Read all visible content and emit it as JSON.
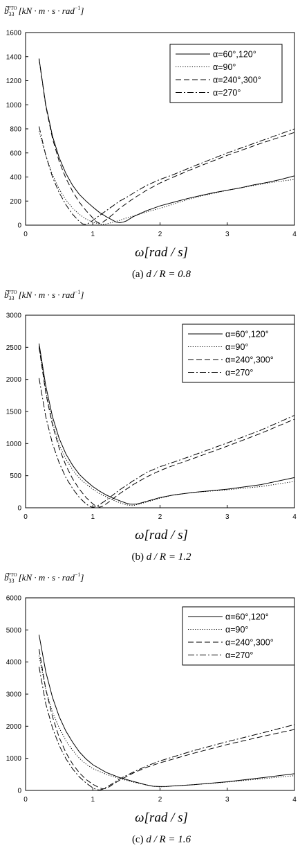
{
  "chart_data": [
    {
      "type": "line",
      "ylabel": "b̃₃₃^PTO [kN·m·s·rad⁻¹]",
      "xlabel": "ω[rad / s]",
      "caption": "(a)  d / R = 0.8",
      "xlim": [
        0,
        4
      ],
      "ylim": [
        0,
        1600
      ],
      "xticks": [
        0,
        1,
        2,
        3,
        4
      ],
      "yticks": [
        0,
        200,
        400,
        600,
        800,
        1000,
        1200,
        1400,
        1600
      ],
      "grid": false,
      "legend_position": "top-right",
      "series": [
        {
          "name": "α=60°,120°",
          "dash": "solid",
          "x": [
            0.2,
            0.3,
            0.4,
            0.5,
            0.6,
            0.7,
            0.8,
            0.9,
            1.0,
            1.1,
            1.2,
            1.3,
            1.35,
            1.4,
            1.45,
            1.5,
            1.6,
            1.7,
            1.8,
            1.9,
            2.0,
            2.2,
            2.4,
            2.6,
            2.8,
            3.0,
            3.2,
            3.4,
            3.6,
            3.8,
            4.0
          ],
          "y": [
            1385,
            1000,
            740,
            560,
            430,
            330,
            255,
            200,
            150,
            105,
            70,
            40,
            25,
            20,
            25,
            35,
            70,
            95,
            120,
            140,
            160,
            190,
            220,
            245,
            270,
            290,
            310,
            335,
            355,
            380,
            410
          ]
        },
        {
          "name": "α=90°",
          "dash": "dotted",
          "x": [
            0.2,
            0.3,
            0.4,
            0.5,
            0.6,
            0.7,
            0.8,
            0.9,
            1.0,
            1.1,
            1.15,
            1.2,
            1.3,
            1.4,
            1.5,
            1.6,
            1.8,
            2.0,
            2.2,
            2.4,
            2.6,
            2.8,
            3.0,
            3.2,
            3.4,
            3.6,
            3.8,
            4.0
          ],
          "y": [
            780,
            580,
            420,
            300,
            210,
            140,
            90,
            50,
            25,
            10,
            5,
            10,
            25,
            40,
            60,
            75,
            110,
            140,
            175,
            210,
            240,
            265,
            290,
            310,
            330,
            350,
            365,
            380
          ]
        },
        {
          "name": "α=240°,300°",
          "dash": "dashed",
          "x": [
            0.2,
            0.3,
            0.4,
            0.5,
            0.6,
            0.7,
            0.8,
            0.9,
            1.0,
            1.05,
            1.1,
            1.15,
            1.2,
            1.3,
            1.4,
            1.5,
            1.6,
            1.8,
            2.0,
            2.2,
            2.5,
            3.0,
            3.5,
            4.0
          ],
          "y": [
            1380,
            990,
            720,
            530,
            390,
            280,
            190,
            120,
            60,
            30,
            15,
            25,
            45,
            90,
            140,
            180,
            220,
            290,
            350,
            400,
            470,
            580,
            680,
            770
          ]
        },
        {
          "name": "α=270°",
          "dash": "dash-dot",
          "x": [
            0.2,
            0.3,
            0.4,
            0.5,
            0.6,
            0.7,
            0.8,
            0.85,
            0.9,
            0.95,
            1.0,
            1.05,
            1.1,
            1.2,
            1.3,
            1.4,
            1.5,
            1.6,
            1.8,
            2.0,
            2.2,
            2.5,
            3.0,
            3.5,
            4.0
          ],
          "y": [
            820,
            580,
            400,
            270,
            170,
            90,
            30,
            10,
            5,
            20,
            40,
            60,
            80,
            120,
            160,
            200,
            230,
            265,
            330,
            380,
            420,
            490,
            600,
            700,
            800
          ]
        }
      ]
    },
    {
      "type": "line",
      "ylabel": "b̃₃₃^PTO [kN·m·s·rad⁻¹]",
      "xlabel": "ω[rad / s]",
      "caption": "(b)  d / R = 1.2",
      "xlim": [
        0,
        4
      ],
      "ylim": [
        0,
        3000
      ],
      "xticks": [
        0,
        1,
        2,
        3,
        4
      ],
      "yticks": [
        0,
        500,
        1000,
        1500,
        2000,
        2500,
        3000
      ],
      "grid": false,
      "legend_position": "top-right",
      "series": [
        {
          "name": "α=60°,120°",
          "dash": "solid",
          "x": [
            0.2,
            0.3,
            0.4,
            0.5,
            0.6,
            0.7,
            0.8,
            0.9,
            1.0,
            1.1,
            1.2,
            1.3,
            1.4,
            1.5,
            1.55,
            1.6,
            1.65,
            1.7,
            1.8,
            1.9,
            2.0,
            2.2,
            2.5,
            3.0,
            3.5,
            4.0
          ],
          "y": [
            2560,
            1900,
            1420,
            1080,
            840,
            660,
            520,
            420,
            330,
            260,
            200,
            150,
            110,
            70,
            58,
            55,
            58,
            70,
            100,
            130,
            160,
            200,
            240,
            290,
            360,
            470
          ]
        },
        {
          "name": "α=90°",
          "dash": "dotted",
          "x": [
            0.2,
            0.3,
            0.4,
            0.5,
            0.6,
            0.7,
            0.8,
            0.9,
            1.0,
            1.1,
            1.2,
            1.3,
            1.4,
            1.5,
            1.6,
            1.7,
            1.8,
            2.0,
            2.2,
            2.5,
            3.0,
            3.5,
            4.0
          ],
          "y": [
            2520,
            1820,
            1330,
            980,
            760,
            590,
            460,
            370,
            290,
            220,
            170,
            120,
            80,
            45,
            35,
            60,
            90,
            150,
            200,
            240,
            280,
            330,
            410
          ]
        },
        {
          "name": "α=240°,300°",
          "dash": "dashed",
          "x": [
            0.2,
            0.3,
            0.4,
            0.5,
            0.6,
            0.7,
            0.8,
            0.9,
            1.0,
            1.05,
            1.1,
            1.15,
            1.2,
            1.3,
            1.4,
            1.5,
            1.6,
            1.8,
            2.0,
            2.2,
            2.5,
            3.0,
            3.5,
            4.0
          ],
          "y": [
            2500,
            1790,
            1290,
            930,
            660,
            450,
            290,
            160,
            60,
            25,
            10,
            25,
            60,
            140,
            220,
            290,
            360,
            480,
            580,
            660,
            770,
            960,
            1160,
            1380
          ]
        },
        {
          "name": "α=270°",
          "dash": "dash-dot",
          "x": [
            0.2,
            0.3,
            0.4,
            0.5,
            0.6,
            0.7,
            0.8,
            0.9,
            0.95,
            1.0,
            1.05,
            1.1,
            1.2,
            1.3,
            1.4,
            1.5,
            1.6,
            1.8,
            2.0,
            2.2,
            2.5,
            3.0,
            3.5,
            4.0
          ],
          "y": [
            2020,
            1420,
            1000,
            700,
            470,
            300,
            160,
            60,
            25,
            5,
            20,
            50,
            120,
            200,
            280,
            350,
            420,
            550,
            640,
            710,
            820,
            1010,
            1210,
            1440
          ]
        }
      ]
    },
    {
      "type": "line",
      "ylabel": "b̃₃₃^PTO [kN·m·s·rad⁻¹]",
      "xlabel": "ω[rad / s]",
      "caption": "(c)  d / R = 1.6",
      "xlim": [
        0,
        4
      ],
      "ylim": [
        0,
        6000
      ],
      "xticks": [
        0,
        1,
        2,
        3,
        4
      ],
      "yticks": [
        0,
        1000,
        2000,
        3000,
        4000,
        5000,
        6000
      ],
      "grid": false,
      "legend_position": "top-right",
      "series": [
        {
          "name": "α=60°,120°",
          "dash": "solid",
          "x": [
            0.2,
            0.3,
            0.4,
            0.5,
            0.6,
            0.7,
            0.8,
            0.9,
            1.0,
            1.2,
            1.4,
            1.6,
            1.8,
            1.9,
            2.0,
            2.1,
            2.2,
            2.5,
            3.0,
            3.5,
            4.0
          ],
          "y": [
            4850,
            3700,
            2900,
            2300,
            1850,
            1500,
            1200,
            980,
            800,
            560,
            400,
            280,
            170,
            130,
            120,
            125,
            140,
            180,
            270,
            390,
            520
          ]
        },
        {
          "name": "α=90°",
          "dash": "dotted",
          "x": [
            0.2,
            0.3,
            0.4,
            0.5,
            0.6,
            0.7,
            0.8,
            0.9,
            1.0,
            1.2,
            1.4,
            1.6,
            1.8,
            1.9,
            2.0,
            2.1,
            2.2,
            2.5,
            3.0,
            3.5,
            4.0
          ],
          "y": [
            4200,
            3150,
            2450,
            1950,
            1550,
            1250,
            1000,
            820,
            680,
            500,
            370,
            260,
            170,
            130,
            110,
            120,
            140,
            180,
            260,
            360,
            460
          ]
        },
        {
          "name": "α=240°,300°",
          "dash": "dashed",
          "x": [
            0.2,
            0.3,
            0.4,
            0.5,
            0.6,
            0.7,
            0.8,
            0.9,
            1.0,
            1.1,
            1.15,
            1.2,
            1.25,
            1.3,
            1.4,
            1.6,
            1.8,
            2.0,
            2.5,
            3.0,
            3.5,
            4.0
          ],
          "y": [
            4400,
            3150,
            2300,
            1650,
            1180,
            820,
            550,
            340,
            190,
            80,
            50,
            60,
            120,
            190,
            320,
            540,
            720,
            860,
            1160,
            1430,
            1670,
            1900
          ]
        },
        {
          "name": "α=270°",
          "dash": "dash-dot",
          "x": [
            0.2,
            0.3,
            0.4,
            0.5,
            0.6,
            0.7,
            0.8,
            0.9,
            1.0,
            1.05,
            1.1,
            1.15,
            1.2,
            1.3,
            1.4,
            1.6,
            1.8,
            2.0,
            2.5,
            3.0,
            3.5,
            4.0
          ],
          "y": [
            3850,
            2700,
            1950,
            1400,
            990,
            670,
            420,
            230,
            80,
            30,
            10,
            40,
            100,
            220,
            360,
            570,
            760,
            920,
            1240,
            1520,
            1780,
            2050
          ]
        }
      ]
    }
  ]
}
